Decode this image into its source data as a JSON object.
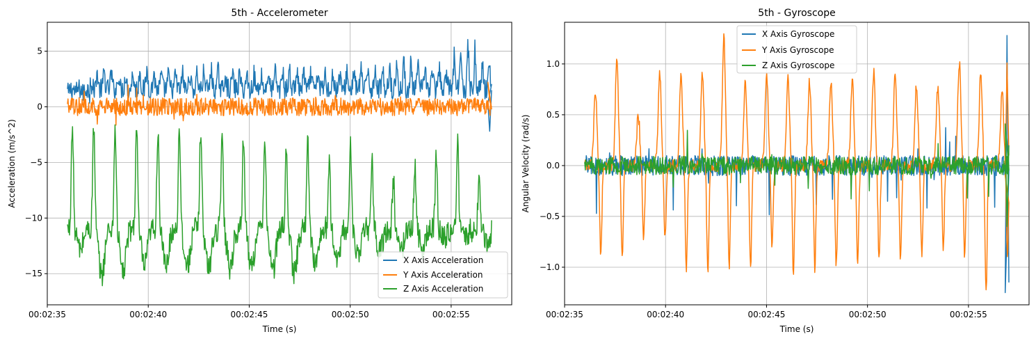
{
  "chart_data": [
    {
      "type": "line",
      "title": "5th - Accelerometer",
      "xlabel": "Time (s)",
      "ylabel": "Acceleration (m/s^2)",
      "x_ticks": [
        "00:02:35",
        "00:02:40",
        "00:02:45",
        "00:02:50",
        "00:02:55"
      ],
      "y_ticks": [
        "5",
        "0",
        "−5",
        "−10",
        "−15"
      ],
      "xlim": [
        155.0,
        178.0
      ],
      "ylim": [
        -17.8,
        7.6
      ],
      "grid": true,
      "legend_position": "lower-right",
      "signal": {
        "t_start": 156.0,
        "t_end": 177.0,
        "cycle_period": 1.06,
        "first_cycle_time": 156.05
      },
      "series": [
        {
          "name": "X Axis Acceleration",
          "color": "#1f77b4",
          "baseline": 1.6,
          "cycle_peaks": [
            2.2,
            4.1,
            3.9,
            4.2,
            3.8,
            4.0,
            4.3,
            4.0,
            3.9,
            4.1,
            4.2,
            4.0,
            3.9,
            4.3,
            4.6,
            4.8,
            4.5,
            4.2,
            6.4,
            4.8,
            5.9
          ],
          "end_values": [
            0.3,
            -2.2,
            1.5
          ]
        },
        {
          "name": "Y Axis Acceleration",
          "color": "#ff7f0e",
          "baseline": 0.0,
          "cycle_peaks": [
            1.5,
            2.3,
            2.0,
            1.8,
            1.9,
            1.7,
            1.6,
            1.4,
            1.3,
            1.2,
            1.4,
            1.3,
            1.2,
            1.2,
            1.1,
            1.3,
            1.2,
            1.1,
            1.2,
            1.0,
            1.6
          ],
          "end_values": [
            2.2,
            0.5,
            0.0
          ]
        },
        {
          "name": "Z Axis Acceleration",
          "color": "#2ca02c",
          "baseline": -11.0,
          "cycle_peaks": [
            -1.7,
            -1.6,
            -1.6,
            -1.7,
            -1.8,
            -1.7,
            -1.6,
            -2.0,
            -2.3,
            -3.0,
            -3.5,
            -3.2,
            -5.0,
            -3.6,
            -4.8,
            -6.7,
            -5.2,
            -4.5,
            -3.2,
            -6.5,
            -4.2
          ],
          "cycle_troughs": [
            -13.5,
            -16.7,
            -16.2,
            -15.5,
            -15.5,
            -15.6,
            -15.7,
            -15.6,
            -15.6,
            -16.1,
            -16.3,
            -15.2,
            -14.8,
            -14.2,
            -13.6,
            -13.5,
            -13.2,
            -12.0,
            -12.0,
            -12.5,
            -13.0
          ]
        }
      ]
    },
    {
      "type": "line",
      "title": "5th - Gyroscope",
      "xlabel": "Time (s)",
      "ylabel": "Angular Velocity (rad/s)",
      "x_ticks": [
        "00:02:35",
        "00:02:40",
        "00:02:45",
        "00:02:50",
        "00:02:55"
      ],
      "y_ticks": [
        "1.0",
        "0.5",
        "0.0",
        "−0.5",
        "−1.0"
      ],
      "xlim": [
        155.0,
        178.0
      ],
      "ylim": [
        -1.37,
        1.41
      ],
      "grid": true,
      "legend_position": "upper-center",
      "signal": {
        "t_start": 156.0,
        "t_end": 177.0,
        "cycle_period": 1.06,
        "first_cycle_time": 156.05
      },
      "series": [
        {
          "name": "X Axis Gyroscope",
          "color": "#1f77b4",
          "baseline": 0.0,
          "noise": 0.1,
          "end_values": [
            -1.25,
            1.28,
            -1.15
          ]
        },
        {
          "name": "Y Axis Gyroscope",
          "color": "#ff7f0e",
          "baseline": 0.0,
          "cycle_peaks": [
            0.72,
            1.01,
            0.5,
            0.94,
            0.88,
            0.9,
            1.29,
            0.82,
            0.9,
            0.85,
            0.83,
            0.85,
            0.86,
            0.92,
            0.9,
            0.8,
            0.78,
            1.02,
            0.9,
            0.72,
            0.95
          ],
          "cycle_troughs": [
            -0.88,
            -0.92,
            -0.73,
            -0.73,
            -1.03,
            -1.05,
            -1.0,
            -1.02,
            -0.8,
            -1.12,
            -1.0,
            -1.0,
            -0.95,
            -0.93,
            -0.95,
            -0.9,
            -0.82,
            -0.88,
            -1.24,
            -0.85,
            -0.8
          ],
          "end_values": [
            -0.1,
            1.01,
            0.1
          ]
        },
        {
          "name": "Z Axis Gyroscope",
          "color": "#2ca02c",
          "baseline": 0.0,
          "noise": 0.09,
          "end_values": [
            0.41,
            -0.6,
            0.2
          ]
        }
      ]
    }
  ]
}
